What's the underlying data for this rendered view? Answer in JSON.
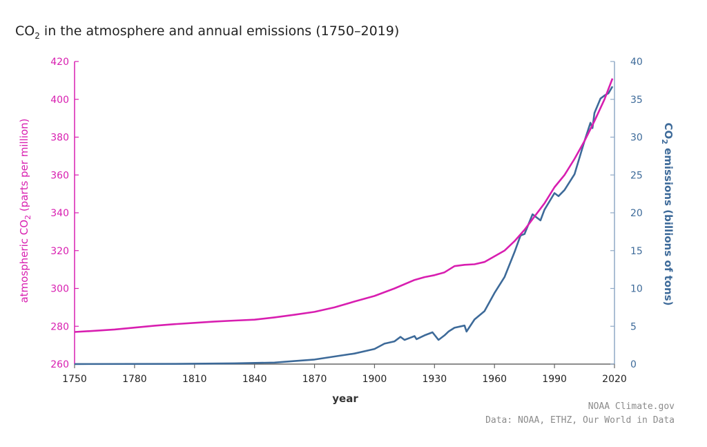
{
  "chart_data": {
    "type": "line",
    "title_main": "CO",
    "title_sub": "2",
    "title_rest": " in the atmosphere and annual emissions (1750–2019)",
    "xlabel": "year",
    "ylabel_left": {
      "main": "atmospheric CO",
      "sub": "2",
      "rest": " (parts per million)"
    },
    "ylabel_right": {
      "main": "CO",
      "sub": "2",
      "rest": " emissions (billions of tons)"
    },
    "xlim": [
      1750,
      2020
    ],
    "ylim_left": [
      260,
      420
    ],
    "ylim_right": [
      0,
      40
    ],
    "x_ticks": [
      "1750",
      "1780",
      "1810",
      "1840",
      "1870",
      "1900",
      "1930",
      "1960",
      "1990",
      "2020"
    ],
    "y_left_ticks": [
      "260",
      "280",
      "300",
      "320",
      "340",
      "360",
      "380",
      "400",
      "420"
    ],
    "y_right_ticks": [
      "0",
      "5",
      "10",
      "15",
      "20",
      "25",
      "30",
      "35",
      "40"
    ],
    "colors": {
      "atmospheric": "#d81eb0",
      "emissions": "#3d6a99",
      "axis_left": "#d81eb0",
      "axis_right": "#8fa9c6",
      "axis_bottom": "#666666"
    },
    "series": [
      {
        "name": "atmospheric CO2 (ppm)",
        "axis": "left",
        "x": [
          1750,
          1760,
          1770,
          1780,
          1790,
          1800,
          1810,
          1820,
          1830,
          1840,
          1850,
          1860,
          1870,
          1880,
          1890,
          1900,
          1910,
          1920,
          1925,
          1930,
          1935,
          1940,
          1945,
          1950,
          1955,
          1960,
          1965,
          1970,
          1975,
          1980,
          1985,
          1990,
          1995,
          2000,
          2005,
          2010,
          2015,
          2019
        ],
        "values": [
          277.0,
          277.6,
          278.3,
          279.3,
          280.3,
          281.1,
          281.8,
          282.5,
          283.0,
          283.5,
          284.7,
          286.1,
          287.6,
          290.0,
          293.1,
          296.0,
          300.0,
          304.5,
          306.0,
          307.0,
          308.5,
          311.8,
          312.5,
          312.8,
          314.0,
          317.0,
          320.0,
          325.0,
          331.0,
          338.0,
          345.0,
          353.5,
          360.0,
          368.5,
          378.0,
          388.5,
          400.0,
          411.0
        ]
      },
      {
        "name": "CO2 emissions (billions of tons)",
        "axis": "right",
        "x": [
          1750,
          1800,
          1830,
          1850,
          1860,
          1870,
          1880,
          1890,
          1900,
          1905,
          1910,
          1913,
          1915,
          1918,
          1920,
          1921,
          1925,
          1929,
          1932,
          1935,
          1937,
          1940,
          1945,
          1946,
          1950,
          1955,
          1960,
          1965,
          1970,
          1973,
          1975,
          1979,
          1980,
          1983,
          1985,
          1990,
          1992,
          1995,
          2000,
          2005,
          2008,
          2009,
          2010,
          2013,
          2015,
          2017,
          2019
        ],
        "values": [
          0.01,
          0.03,
          0.1,
          0.2,
          0.4,
          0.6,
          1.0,
          1.4,
          2.0,
          2.7,
          3.0,
          3.6,
          3.2,
          3.5,
          3.7,
          3.3,
          3.8,
          4.2,
          3.2,
          3.8,
          4.3,
          4.8,
          5.1,
          4.3,
          5.9,
          7.0,
          9.4,
          11.5,
          14.8,
          17.0,
          17.2,
          19.8,
          19.6,
          19.0,
          20.4,
          22.6,
          22.2,
          23.0,
          25.1,
          29.5,
          31.9,
          31.2,
          33.2,
          35.1,
          35.5,
          35.8,
          36.7
        ]
      }
    ],
    "credits": [
      "NOAA Climate.gov",
      "Data: NOAA, ETHZ, Our World in Data"
    ]
  }
}
